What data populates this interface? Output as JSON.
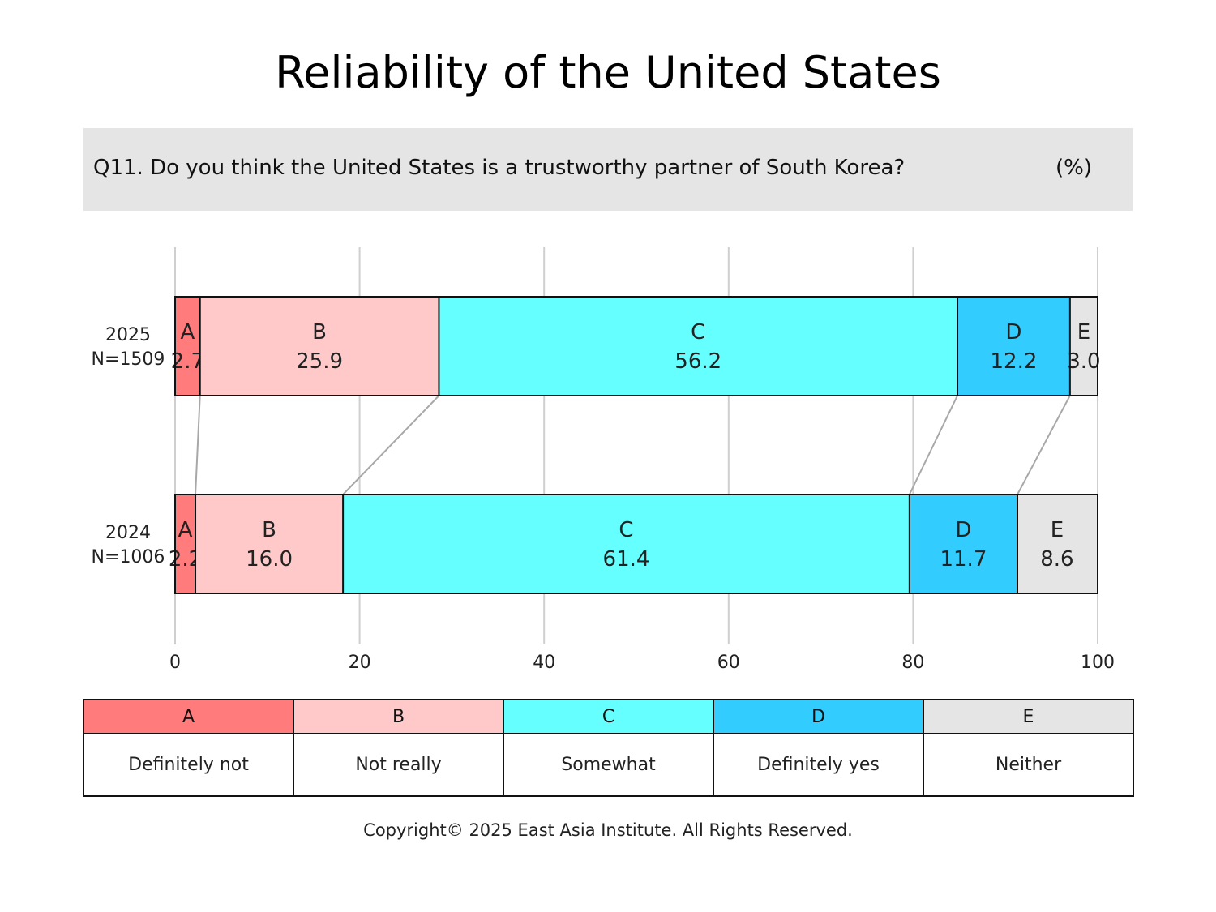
{
  "title": "Reliability of the United States",
  "question": "Q11. Do you think the United States is a trustworthy partner of South Korea?",
  "unit": "(%)",
  "chart_data": {
    "type": "bar",
    "orientation": "horizontal",
    "stacked": true,
    "xlim": [
      0,
      100
    ],
    "xticks": [
      "0",
      "20",
      "40",
      "60",
      "80",
      "100"
    ],
    "grid": true,
    "categories": [
      {
        "year": "2025",
        "n": "N=1509"
      },
      {
        "year": "2024",
        "n": "N=1006"
      }
    ],
    "segments": [
      {
        "key": "A",
        "label": "Definitely not",
        "color": "#ff7b7c",
        "values": [
          2.7,
          2.2
        ],
        "text": [
          "2.7",
          "2.2"
        ]
      },
      {
        "key": "B",
        "label": "Not really",
        "color": "#ffc9c9",
        "values": [
          25.9,
          16.0
        ],
        "text": [
          "25.9",
          "16.0"
        ]
      },
      {
        "key": "C",
        "label": "Somewhat",
        "color": "#66ffff",
        "values": [
          56.2,
          61.4
        ],
        "text": [
          "56.2",
          "61.4"
        ]
      },
      {
        "key": "D",
        "label": "Definitely yes",
        "color": "#33ccff",
        "values": [
          12.2,
          11.7
        ],
        "text": [
          "12.2",
          "11.7"
        ]
      },
      {
        "key": "E",
        "label": "Neither",
        "color": "#e6e5e6",
        "values": [
          3.0,
          8.6
        ],
        "text": [
          "3.0",
          "8.6"
        ]
      }
    ]
  },
  "copyright": "Copyright© 2025 East Asia Institute. All Rights Reserved."
}
